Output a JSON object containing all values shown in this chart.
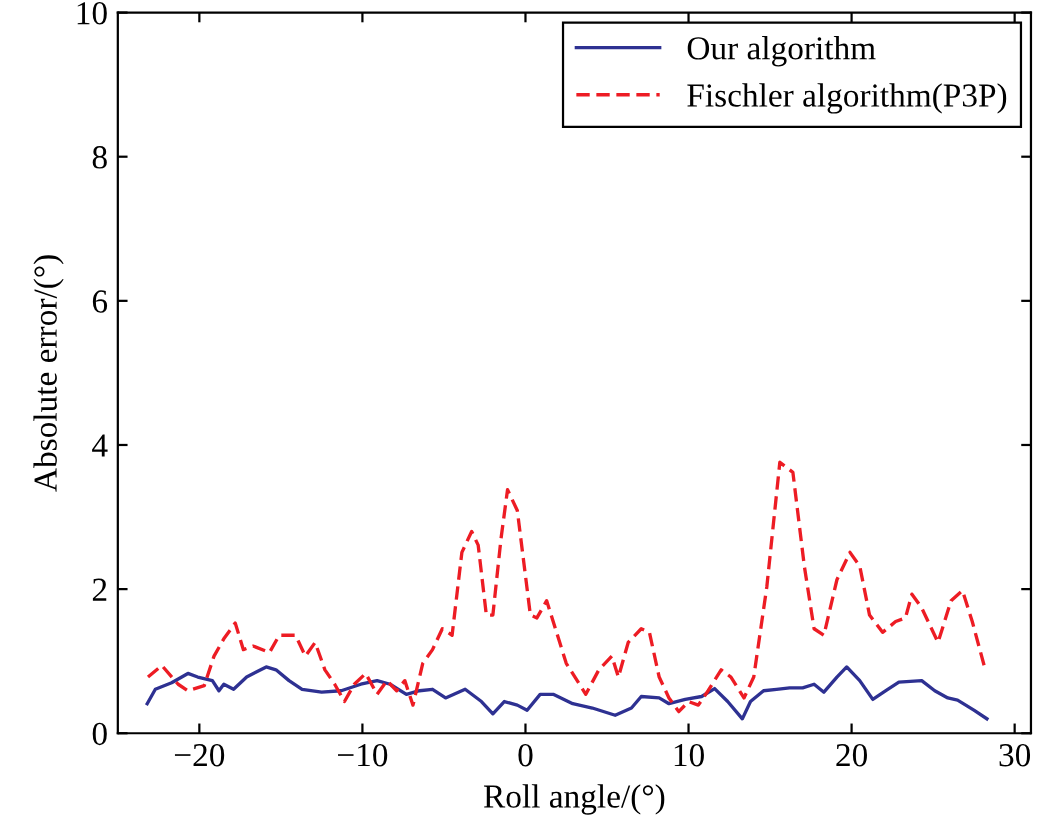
{
  "chart_data": {
    "type": "line",
    "xlabel": "Roll angle/(°)",
    "ylabel": "Absolute error/(°)",
    "xlim": [
      -25,
      31
    ],
    "xticks": [
      -20,
      -10,
      0,
      10,
      20,
      30
    ],
    "ylim": [
      0,
      10
    ],
    "yticks": [
      0,
      2,
      4,
      6,
      8,
      10
    ],
    "grid": false,
    "legend": "top right",
    "series": [
      {
        "name": "Our algorithm",
        "color": "#2e3192",
        "line_style": "solid",
        "x": [
          -23.2,
          -22.7,
          -21.7,
          -20.7,
          -20.1,
          -19.2,
          -18.8,
          -18.5,
          -17.9,
          -17.1,
          -15.9,
          -15.3,
          -14.5,
          -13.7,
          -12.5,
          -11.3,
          -10.1,
          -9.1,
          -8.3,
          -7.3,
          -6.5,
          -5.7,
          -4.9,
          -3.7,
          -2.7,
          -2.0,
          -1.3,
          -0.5,
          0.1,
          0.9,
          1.7,
          2.9,
          4.1,
          5.5,
          6.5,
          7.1,
          8.2,
          8.8,
          9.8,
          10.8,
          11.6,
          12.4,
          13.3,
          13.8,
          14.6,
          15.4,
          16.2,
          17.0,
          17.7,
          18.3,
          19.1,
          19.7,
          20.5,
          21.3,
          22.1,
          22.9,
          24.3,
          25.1,
          25.9,
          26.5,
          27.5,
          28.3
        ],
        "values": [
          0.41,
          0.61,
          0.7,
          0.83,
          0.78,
          0.73,
          0.59,
          0.68,
          0.61,
          0.78,
          0.92,
          0.88,
          0.73,
          0.61,
          0.57,
          0.59,
          0.68,
          0.73,
          0.68,
          0.54,
          0.59,
          0.61,
          0.49,
          0.61,
          0.44,
          0.27,
          0.44,
          0.39,
          0.32,
          0.54,
          0.54,
          0.41,
          0.35,
          0.25,
          0.35,
          0.51,
          0.49,
          0.41,
          0.47,
          0.51,
          0.62,
          0.44,
          0.2,
          0.44,
          0.59,
          0.61,
          0.63,
          0.63,
          0.68,
          0.57,
          0.78,
          0.92,
          0.73,
          0.47,
          0.59,
          0.71,
          0.73,
          0.59,
          0.49,
          0.46,
          0.32,
          0.2
        ]
      },
      {
        "name": "Fischler algorithm(P3P)",
        "color": "#ed1c24",
        "line_style": "dashed",
        "x": [
          -23.15,
          -22.3,
          -21.3,
          -20.7,
          -19.7,
          -19.1,
          -18.5,
          -17.8,
          -17.3,
          -16.7,
          -15.7,
          -15.1,
          -14.1,
          -13.5,
          -12.9,
          -12.3,
          -11.7,
          -11.1,
          -10.5,
          -9.8,
          -9.1,
          -8.5,
          -7.9,
          -7.4,
          -6.9,
          -6.3,
          -5.7,
          -5.1,
          -4.5,
          -3.9,
          -3.3,
          -2.9,
          -2.4,
          -2.0,
          -1.5,
          -1.1,
          -0.5,
          0.3,
          0.7,
          1.3,
          2.5,
          3.7,
          4.5,
          5.3,
          5.7,
          6.3,
          7.1,
          7.6,
          8.2,
          8.8,
          9.4,
          10.0,
          10.6,
          11.2,
          12.0,
          12.6,
          13.4,
          14.0,
          14.8,
          15.6,
          16.4,
          17.1,
          17.7,
          18.3,
          19.1,
          19.9,
          20.5,
          21.1,
          21.9,
          22.7,
          23.3,
          23.7,
          24.3,
          25.3,
          26.1,
          26.8,
          27.4,
          28.2
        ],
        "values": [
          0.78,
          0.94,
          0.68,
          0.59,
          0.66,
          1.07,
          1.31,
          1.53,
          1.16,
          1.21,
          1.12,
          1.36,
          1.36,
          1.07,
          1.26,
          0.88,
          0.68,
          0.44,
          0.68,
          0.83,
          0.54,
          0.73,
          0.59,
          0.73,
          0.39,
          0.97,
          1.16,
          1.45,
          1.36,
          2.51,
          2.8,
          2.61,
          1.64,
          1.64,
          2.7,
          3.38,
          3.09,
          1.64,
          1.6,
          1.84,
          0.97,
          0.54,
          0.88,
          1.07,
          0.78,
          1.26,
          1.45,
          1.4,
          0.78,
          0.49,
          0.3,
          0.44,
          0.39,
          0.59,
          0.88,
          0.78,
          0.49,
          0.78,
          2.03,
          3.76,
          3.62,
          2.32,
          1.45,
          1.36,
          2.13,
          2.51,
          2.32,
          1.64,
          1.4,
          1.55,
          1.6,
          1.93,
          1.74,
          1.26,
          1.84,
          1.98,
          1.55,
          0.88
        ]
      }
    ]
  }
}
